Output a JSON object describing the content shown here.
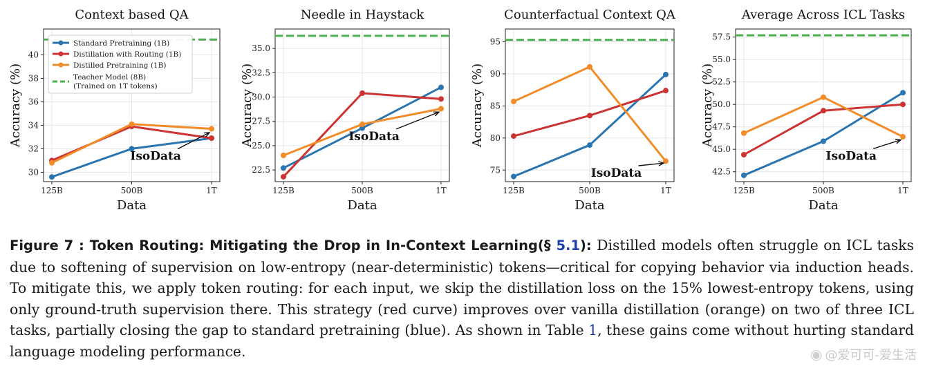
{
  "colors": {
    "standard": "#2a75b0",
    "routing": "#cc3333",
    "distilled": "#f28c28",
    "teacher": "#4caf50"
  },
  "legend": {
    "entries": [
      {
        "key": "standard",
        "label": "Standard Pretraining (1B)"
      },
      {
        "key": "routing",
        "label": "Distillation with Routing (1B)"
      },
      {
        "key": "distilled",
        "label": "Distilled Pretraining (1B)"
      },
      {
        "key": "teacher",
        "label": "Teacher Model (8B)",
        "label2": "(Trained on 1T tokens)"
      }
    ]
  },
  "chart_data": [
    {
      "type": "line",
      "title": "Context based QA",
      "xlabel": "Data",
      "ylabel": "Accuracy (%)",
      "categories": [
        "125B",
        "500B",
        "1T"
      ],
      "ylim": [
        29.2,
        42.2
      ],
      "yticks": [
        30,
        32,
        34,
        36,
        38,
        40
      ],
      "ytick_labels": [
        "30",
        "32",
        "34",
        "36",
        "38",
        "40"
      ],
      "teacher": 41.3,
      "series": [
        {
          "key": "standard",
          "name": "Standard Pretraining (1B)",
          "values": [
            29.6,
            32.0,
            32.9
          ]
        },
        {
          "key": "routing",
          "name": "Distillation with Routing (1B)",
          "values": [
            31.0,
            33.9,
            32.9
          ]
        },
        {
          "key": "distilled",
          "name": "Distilled Pretraining (1B)",
          "values": [
            30.8,
            34.1,
            33.7
          ]
        }
      ],
      "annotation": {
        "text": "IsoData",
        "x": 1.3,
        "y": 31.4,
        "target_x": 2,
        "target_y": 33.5
      }
    },
    {
      "type": "line",
      "title": "Needle in Haystack",
      "xlabel": "Data",
      "ylabel": "Accuracy (%)",
      "categories": [
        "125B",
        "500B",
        "1T"
      ],
      "ylim": [
        21.3,
        37.0
      ],
      "yticks": [
        22.5,
        25.0,
        27.5,
        30.0,
        32.5,
        35.0
      ],
      "ytick_labels": [
        "22.5",
        "25.0",
        "27.5",
        "30.0",
        "32.5",
        "35.0"
      ],
      "teacher": 36.3,
      "series": [
        {
          "key": "standard",
          "name": "Standard Pretraining (1B)",
          "values": [
            22.7,
            26.8,
            31.0
          ]
        },
        {
          "key": "routing",
          "name": "Distillation with Routing (1B)",
          "values": [
            21.8,
            30.4,
            29.8
          ]
        },
        {
          "key": "distilled",
          "name": "Distilled Pretraining (1B)",
          "values": [
            24.0,
            27.2,
            28.8
          ]
        }
      ],
      "annotation": {
        "text": "IsoData",
        "x": 1.15,
        "y": 26.0,
        "target_x": 2,
        "target_y": 28.6
      }
    },
    {
      "type": "line",
      "title": "Counterfactual Context QA",
      "xlabel": "Data",
      "ylabel": "Accuracy (%)",
      "categories": [
        "125B",
        "500B",
        "1T"
      ],
      "ylim": [
        73.2,
        97.0
      ],
      "yticks": [
        75,
        80,
        85,
        90,
        95
      ],
      "ytick_labels": [
        "75",
        "80",
        "85",
        "90",
        "95"
      ],
      "teacher": 95.3,
      "series": [
        {
          "key": "standard",
          "name": "Standard Pretraining (1B)",
          "values": [
            74.0,
            78.9,
            89.9
          ]
        },
        {
          "key": "routing",
          "name": "Distillation with Routing (1B)",
          "values": [
            80.3,
            83.5,
            87.4
          ]
        },
        {
          "key": "distilled",
          "name": "Distilled Pretraining (1B)",
          "values": [
            85.7,
            91.1,
            76.4
          ]
        }
      ],
      "annotation": {
        "text": "IsoData",
        "x": 1.35,
        "y": 74.6,
        "target_x": 2,
        "target_y": 76.3
      }
    },
    {
      "type": "line",
      "title": "Average Across ICL Tasks",
      "xlabel": "Data",
      "ylabel": "Accuracy (%)",
      "categories": [
        "125B",
        "500B",
        "1T"
      ],
      "ylim": [
        41.4,
        58.4
      ],
      "yticks": [
        42.5,
        45.0,
        47.5,
        50.0,
        52.5,
        55.0,
        57.5
      ],
      "ytick_labels": [
        "42.5",
        "45.0",
        "47.5",
        "50.0",
        "52.5",
        "55.0",
        "57.5"
      ],
      "teacher": 57.7,
      "series": [
        {
          "key": "standard",
          "name": "Standard Pretraining (1B)",
          "values": [
            42.1,
            45.9,
            51.3
          ]
        },
        {
          "key": "routing",
          "name": "Distillation with Routing (1B)",
          "values": [
            44.4,
            49.3,
            50.0
          ]
        },
        {
          "key": "distilled",
          "name": "Distilled Pretraining (1B)",
          "values": [
            46.8,
            50.8,
            46.4
          ]
        }
      ],
      "annotation": {
        "text": "IsoData",
        "x": 1.35,
        "y": 44.3,
        "target_x": 2,
        "target_y": 46.2
      }
    }
  ],
  "caption": {
    "head": "Figure 7 :   Token Routing: Mitigating the Drop in In-Context Learning(§ ",
    "ref": "5.1",
    "head_end": "):",
    "body1": " Distilled models often struggle on ICL tasks due to softening of supervision on low-entropy (near-deterministic) tokens—critical for copying behavior via induction heads. To mitigate this, we apply token routing: for each input, we skip the distillation loss on the 15% lowest-entropy tokens, using only ground-truth supervision there. This strategy (red curve) improves over vanilla distillation (orange) on two of three ICL tasks, partially closing the gap to standard pretraining (blue). As shown in Table ",
    "table_ref": "1",
    "body2": ", these gains come without hurting standard language modeling performance."
  },
  "watermark": "@爱可可-爱生活"
}
